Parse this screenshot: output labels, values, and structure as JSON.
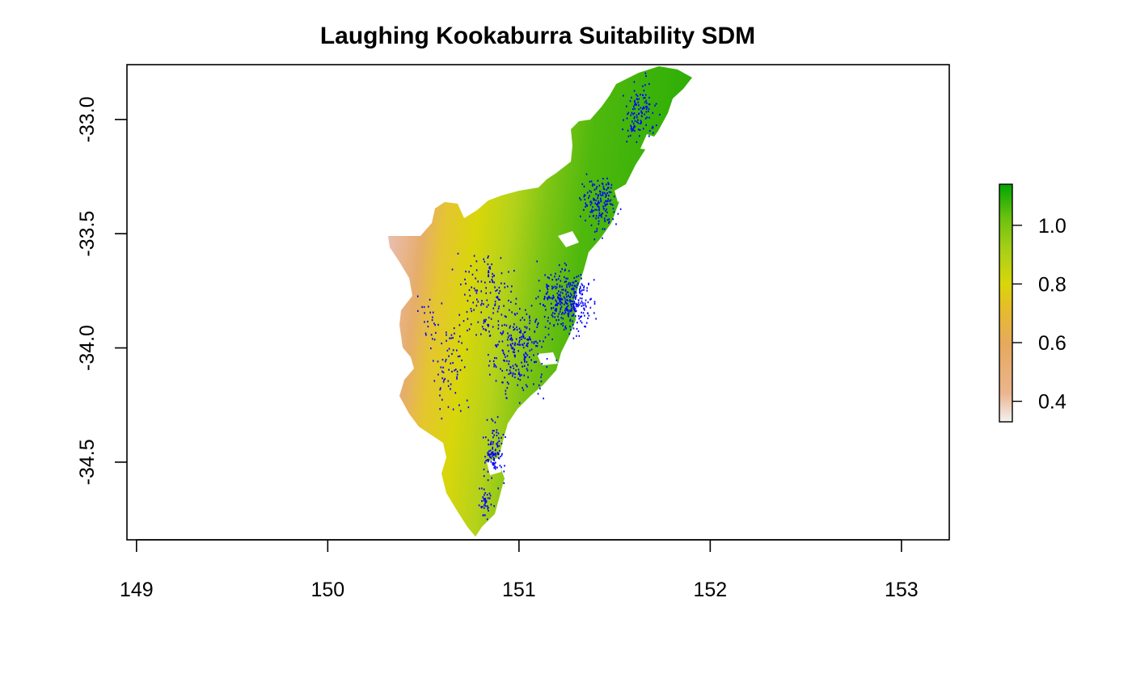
{
  "title": "Laughing Kookaburra Suitability SDM",
  "colors": {
    "occurrence_points": "#0000ff",
    "frame": "#000000",
    "scale": [
      "#f2f2f2",
      "#ebb58e",
      "#e6a95c",
      "#e5bd2a",
      "#d9d60a",
      "#a9d017",
      "#6bc10f",
      "#00a600"
    ]
  },
  "map": {
    "type": "raster",
    "xlim": [
      148.95,
      153.25
    ],
    "ylim": [
      -34.84,
      -32.76
    ],
    "x_ticks": [
      149,
      150,
      151,
      152,
      153
    ],
    "y_ticks": [
      -33.0,
      -33.5,
      -34.0,
      -34.5
    ],
    "x_tick_labels": [
      "149",
      "150",
      "151",
      "152",
      "153"
    ],
    "y_tick_labels": [
      "-33.0",
      "-33.5",
      "-34.0",
      "-34.5"
    ],
    "xlabel": "",
    "ylabel": "",
    "grid": false
  },
  "legend": {
    "placement": "right",
    "range": [
      0.33,
      1.14
    ],
    "ticks": [
      0.4,
      0.6,
      0.8,
      1.0
    ],
    "tick_labels": [
      "0.4",
      "0.6",
      "0.8",
      "1.0"
    ]
  }
}
